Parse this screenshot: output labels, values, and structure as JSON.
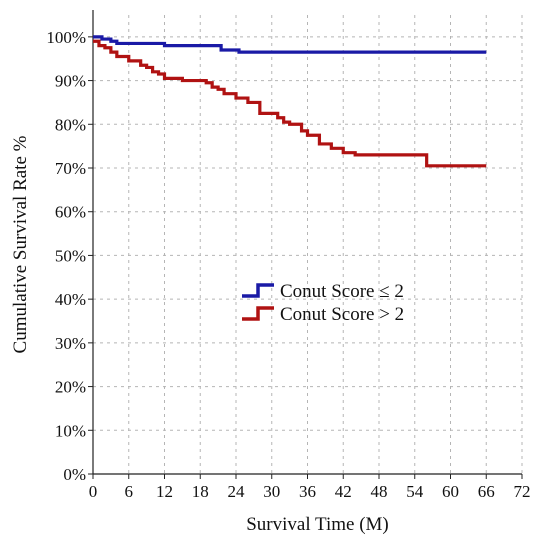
{
  "chart_data": {
    "type": "line",
    "step": true,
    "xlabel": "Survival Time (M)",
    "ylabel": "Cumulative Survival Rate %",
    "xlim": [
      0,
      72
    ],
    "ylim": [
      0,
      105
    ],
    "xticks": [
      0,
      6,
      12,
      18,
      24,
      30,
      36,
      42,
      48,
      54,
      60,
      66,
      72
    ],
    "yticks": [
      0,
      10,
      20,
      30,
      40,
      50,
      60,
      70,
      80,
      90,
      100
    ],
    "xtick_labels": [
      "0",
      "6",
      "12",
      "18",
      "24",
      "30",
      "36",
      "42",
      "48",
      "54",
      "60",
      "66",
      "72"
    ],
    "ytick_labels": [
      "0%",
      "10%",
      "20%",
      "30%",
      "40%",
      "50%",
      "60%",
      "70%",
      "80%",
      "90%",
      "100%"
    ],
    "grid": "dashed",
    "legend_position": "center",
    "series": [
      {
        "name": "Conut Score ≤ 2",
        "color": "#1a1aa6",
        "x": [
          0,
          1.5,
          3,
          4,
          12,
          21.5,
          24.5,
          66
        ],
        "y": [
          100,
          99.5,
          99,
          98.5,
          98,
          97,
          96.5,
          96.5
        ]
      },
      {
        "name": "Conut Score > 2",
        "color": "#b01212",
        "x": [
          0,
          1,
          2,
          3,
          4,
          6,
          8,
          9,
          10,
          11,
          12,
          15,
          19,
          20,
          21,
          22,
          24,
          26,
          28,
          31,
          32,
          33,
          35,
          36,
          38,
          40,
          42,
          44,
          50,
          56,
          66
        ],
        "y": [
          99,
          98,
          97.5,
          96.5,
          95.5,
          94.5,
          93.5,
          93,
          92,
          91.5,
          90.5,
          90,
          89.5,
          88.5,
          88,
          87,
          86,
          85,
          82.5,
          81.5,
          80.5,
          80,
          78.5,
          77.5,
          75.5,
          74.5,
          73.5,
          73,
          73,
          70.5,
          70.5
        ]
      }
    ]
  }
}
